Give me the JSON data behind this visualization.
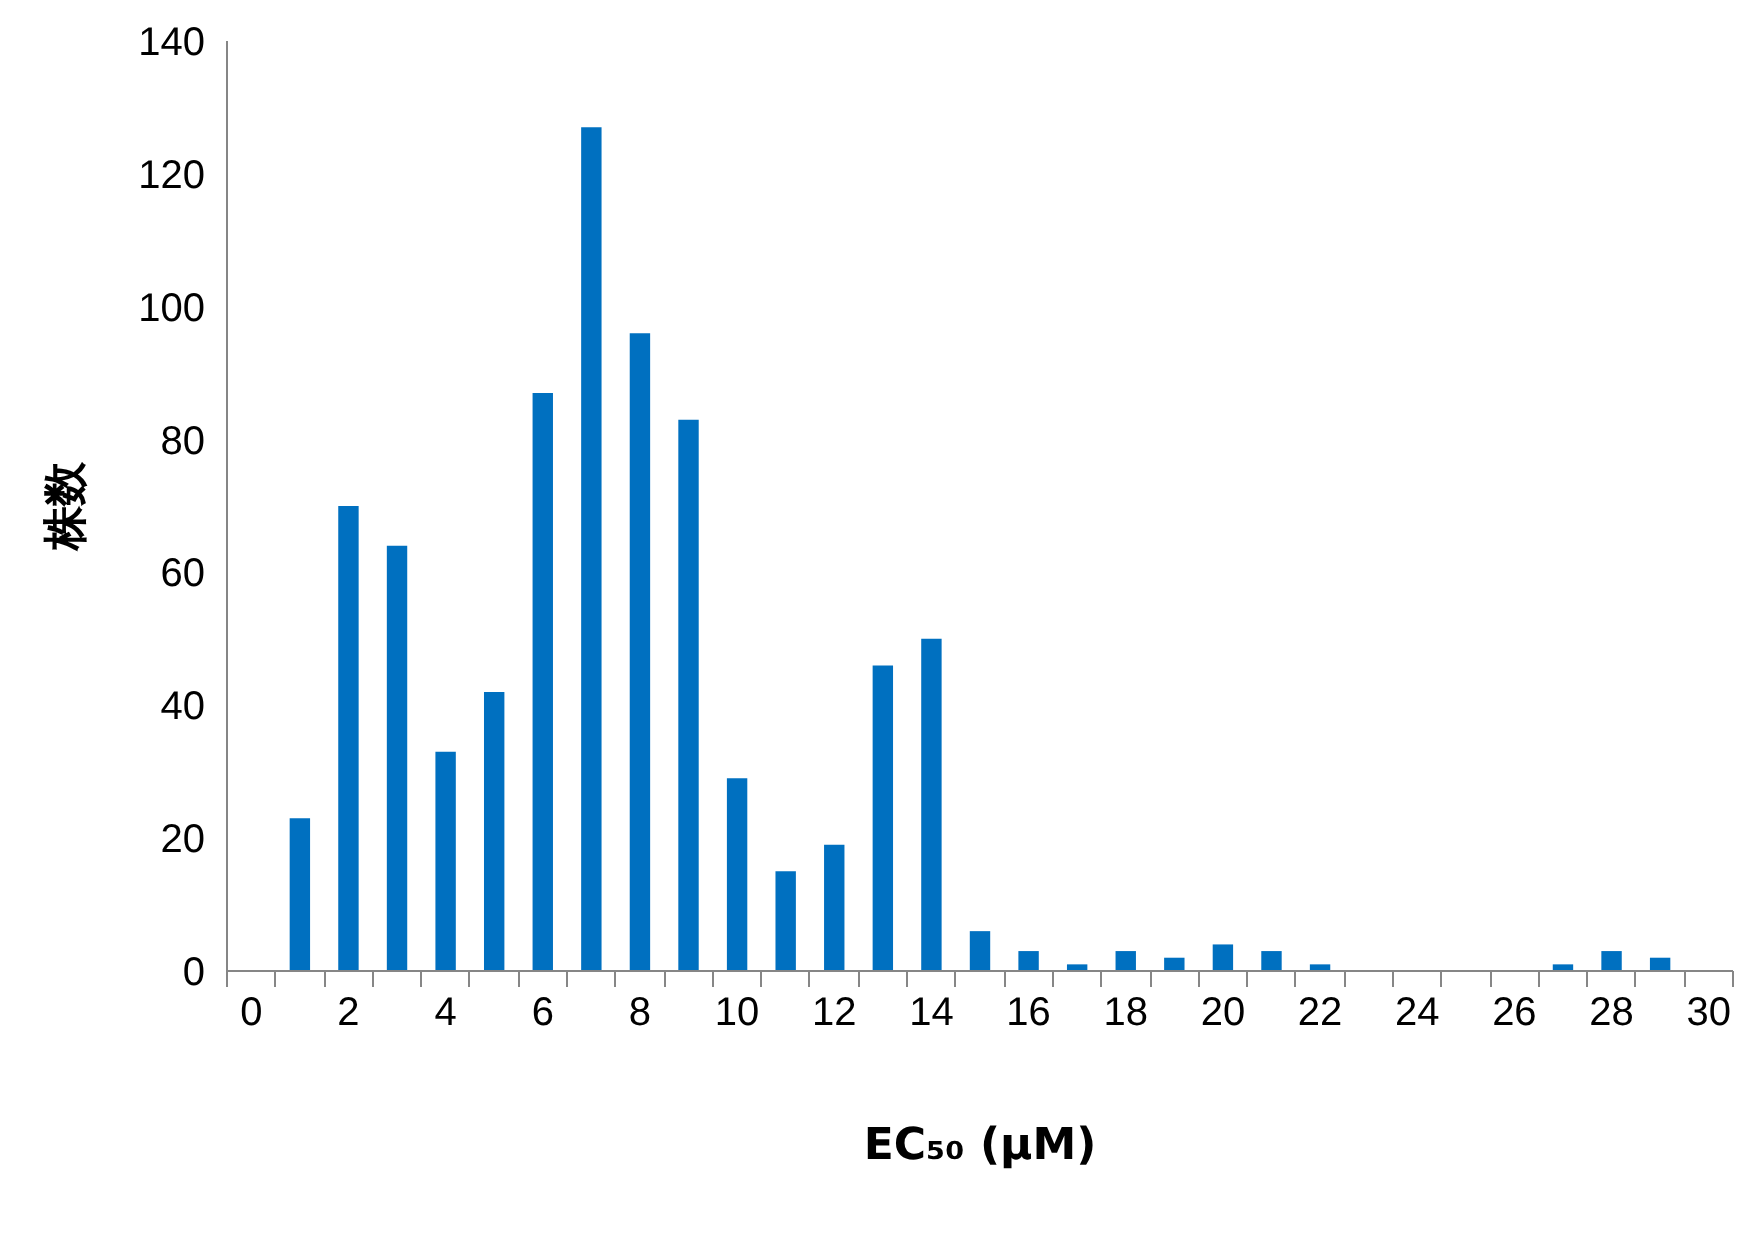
{
  "chart_data": {
    "type": "bar",
    "xlabel": "EC₅₀ (µM)",
    "ylabel": "株数",
    "x": [
      0,
      1,
      2,
      3,
      4,
      5,
      6,
      7,
      8,
      9,
      10,
      11,
      12,
      13,
      14,
      15,
      16,
      17,
      18,
      19,
      20,
      21,
      22,
      23,
      24,
      25,
      26,
      27,
      28,
      29,
      30
    ],
    "values": [
      0,
      23,
      70,
      64,
      33,
      42,
      87,
      127,
      96,
      83,
      29,
      15,
      19,
      46,
      50,
      6,
      3,
      1,
      3,
      2,
      4,
      3,
      1,
      0,
      0,
      0,
      0,
      1,
      3,
      2,
      0
    ],
    "color": "#0070c0",
    "xlim": [
      -0.5,
      30.5
    ],
    "xticks": [
      0,
      2,
      4,
      6,
      8,
      10,
      12,
      14,
      16,
      18,
      20,
      22,
      24,
      26,
      28,
      30
    ],
    "ylim": [
      0,
      140
    ],
    "yticks": [
      0,
      20,
      40,
      60,
      80,
      100,
      120,
      140
    ],
    "grid": false
  }
}
